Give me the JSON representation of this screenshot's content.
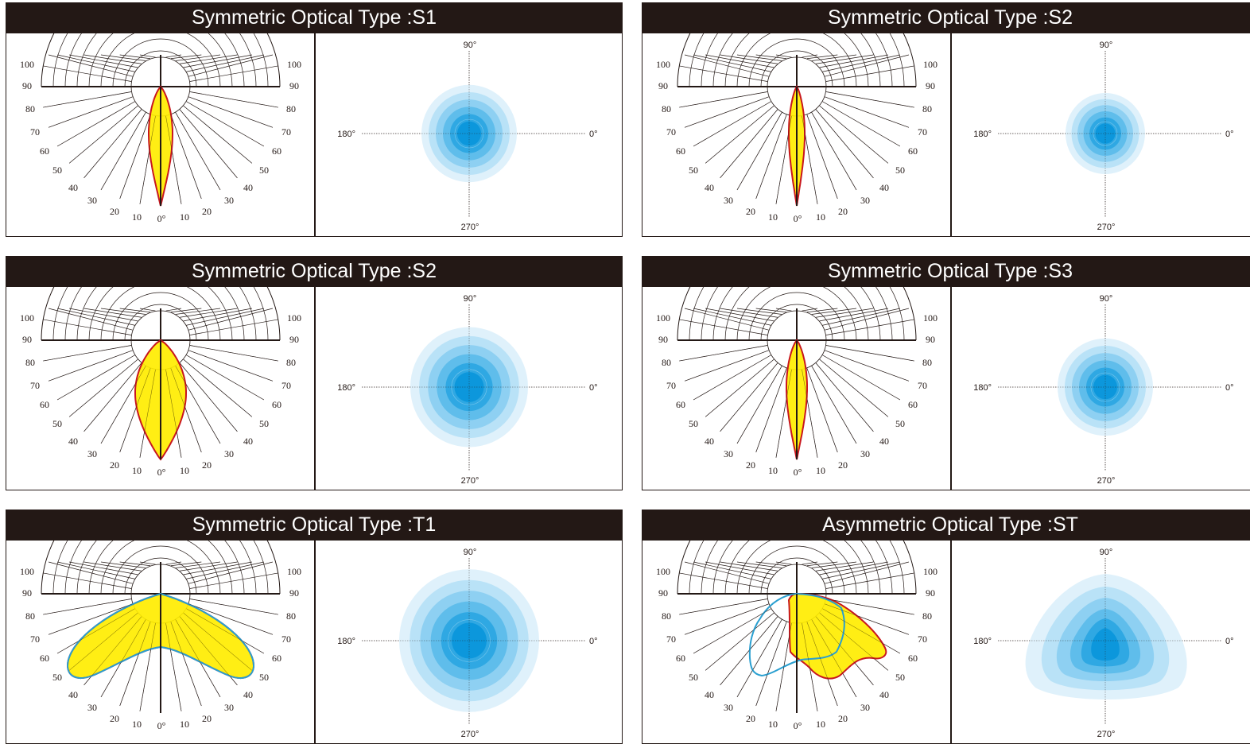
{
  "panels": [
    {
      "title": "Symmetric Optical Type :S1",
      "curve": "s1"
    },
    {
      "title": "Symmetric Optical Type :S2",
      "curve": "s2a"
    },
    {
      "title": "Symmetric Optical Type :S2",
      "curve": "s2b"
    },
    {
      "title": "Symmetric Optical Type :S3",
      "curve": "s3"
    },
    {
      "title": "Symmetric Optical Type :T1",
      "curve": "t1"
    },
    {
      "title": "Asymmetric Optical Type :ST",
      "curve": "st"
    }
  ],
  "polar_labels": {
    "radial": [
      "100",
      "90",
      "80",
      "70",
      "60",
      "50",
      "40",
      "30",
      "20",
      "10"
    ],
    "zero": "0°"
  },
  "isolux_labels": {
    "top": "90°",
    "left": "180°",
    "right": "0°",
    "bottom": "270°"
  },
  "colors": {
    "header_bg": "#231815",
    "header_text": "#ffffff",
    "beam_fill": "#ffed00",
    "beam_outline": "#c8161e",
    "beam_outline_secondary": "#2a9fd0",
    "isolux": [
      "#dff1fb",
      "#b9e2f7",
      "#8ed0f2",
      "#5fbdeb",
      "#2fa8e3",
      "#0c97dc"
    ]
  }
}
